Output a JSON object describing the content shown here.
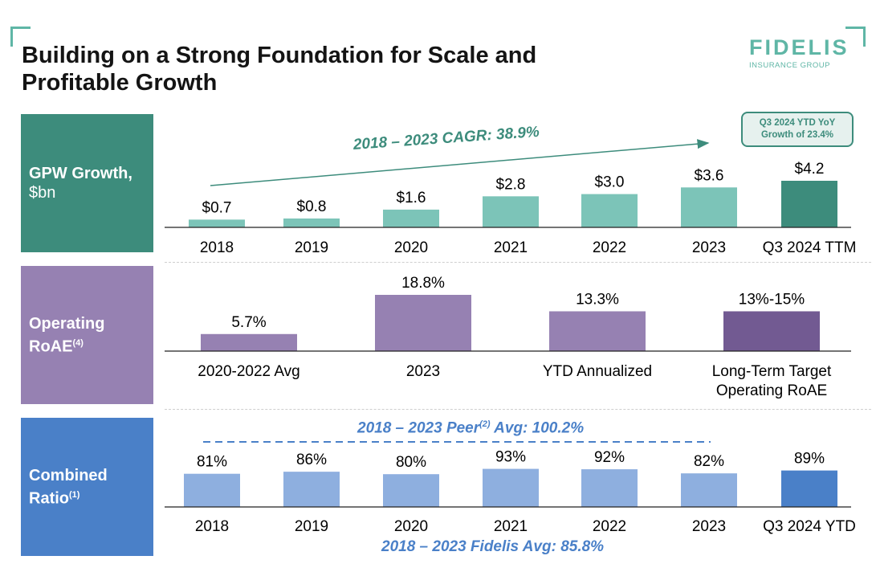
{
  "header": {
    "title_line1": "Building on a Strong Foundation for Scale and",
    "title_line2": "Profitable Growth"
  },
  "logo": {
    "name": "FIDELIS",
    "sub": "INSURANCE GROUP"
  },
  "sections": {
    "gpw": {
      "label_line1": "GPW Growth,",
      "label_line2": "$bn"
    },
    "roae": {
      "label_line1": "Operating",
      "label_line2": "RoAE",
      "label_sup": "(4)"
    },
    "cr": {
      "label_line1": "Combined",
      "label_line2": "Ratio",
      "label_sup": "(1)"
    }
  },
  "annotations": {
    "cagr": "2018 – 2023 CAGR: 38.9%",
    "ytd_box_line1": "Q3 2024 YTD YoY",
    "ytd_box_line2": "Growth of 23.4%",
    "peer_pre": "2018 – 2023 Peer",
    "peer_sup": "(2)",
    "peer_post": " Avg: 100.2%",
    "fidelis_avg": "2018 – 2023 Fidelis Avg: 85.8%"
  },
  "colors": {
    "gpw_bar": "#7cc4b8",
    "gpw_highlight": "#3d8c7c",
    "roae_bar": "#9681b2",
    "roae_highlight": "#725a92",
    "cr_bar": "#8eafdf",
    "cr_highlight": "#4a80c8"
  },
  "chart_data": [
    {
      "type": "bar",
      "title": "GPW Growth, $bn",
      "categories": [
        "2018",
        "2019",
        "2020",
        "2021",
        "2022",
        "2023",
        "Q3 2024 TTM"
      ],
      "values": [
        0.7,
        0.8,
        1.6,
        2.8,
        3.0,
        3.6,
        4.2
      ],
      "labels": [
        "$0.7",
        "$0.8",
        "$1.6",
        "$2.8",
        "$3.0",
        "$3.6",
        "$4.2"
      ],
      "ylim": [
        0,
        4.2
      ]
    },
    {
      "type": "bar",
      "title": "Operating RoAE",
      "categories": [
        "2020-2022 Avg",
        "2023",
        "YTD Annualized",
        "Long-Term Target|Operating RoAE"
      ],
      "values": [
        5.7,
        18.8,
        13.3,
        13.3
      ],
      "labels": [
        "5.7%",
        "18.8%",
        "13.3%",
        "13%-15%"
      ],
      "ylim": [
        0,
        18.8
      ]
    },
    {
      "type": "bar",
      "title": "Combined Ratio",
      "categories": [
        "2018",
        "2019",
        "2020",
        "2021",
        "2022",
        "2023",
        "Q3 2024 YTD"
      ],
      "values": [
        81,
        86,
        80,
        93,
        92,
        82,
        89
      ],
      "labels": [
        "81%",
        "86%",
        "80%",
        "93%",
        "92%",
        "82%",
        "89%"
      ],
      "ylim": [
        0,
        100
      ]
    }
  ]
}
